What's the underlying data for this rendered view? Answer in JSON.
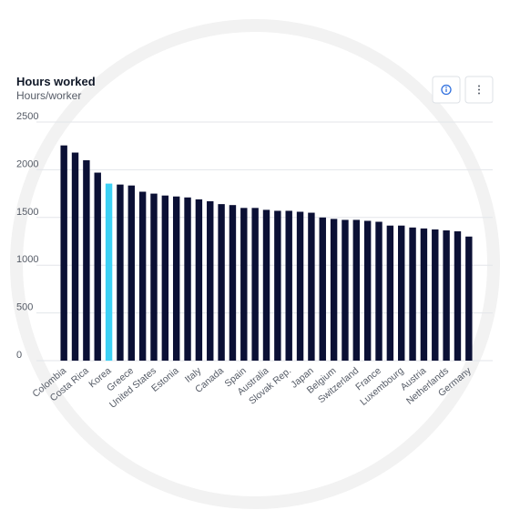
{
  "chart_data": {
    "type": "bar",
    "title": "Hours worked",
    "subtitle": "Hours/worker",
    "categories": [
      "Colombia",
      null,
      "Costa Rica",
      null,
      "Korea",
      null,
      "Greece",
      null,
      "United States",
      null,
      "Estonia",
      null,
      "Italy",
      null,
      "Canada",
      null,
      "Spain",
      null,
      "Australia",
      null,
      "Slovak Rep.",
      null,
      "Japan",
      null,
      "Belgium",
      null,
      "Switzerland",
      null,
      "France",
      null,
      "Luxembourg",
      null,
      "Austria",
      null,
      "Netherlands",
      null,
      "Germany"
    ],
    "values": [
      2255,
      2180,
      2100,
      1970,
      1855,
      1845,
      1835,
      1770,
      1750,
      1730,
      1720,
      1710,
      1690,
      1670,
      1640,
      1630,
      1600,
      1600,
      1580,
      1570,
      1570,
      1560,
      1550,
      1500,
      1485,
      1475,
      1475,
      1465,
      1455,
      1415,
      1415,
      1395,
      1385,
      1375,
      1365,
      1355,
      1300
    ],
    "colors": [
      "#0b1035",
      "#0b1035",
      "#0b1035",
      "#0b1035",
      "#3dd1f5",
      "#0b1035",
      "#0b1035",
      "#0b1035",
      "#0b1035",
      "#0b1035",
      "#0b1035",
      "#0b1035",
      "#0b1035",
      "#0b1035",
      "#0b1035",
      "#0b1035",
      "#0b1035",
      "#0b1035",
      "#0b1035",
      "#0b1035",
      "#0b1035",
      "#0b1035",
      "#0b1035",
      "#0b1035",
      "#0b1035",
      "#0b1035",
      "#0b1035",
      "#0b1035",
      "#0b1035",
      "#0b1035",
      "#0b1035",
      "#0b1035",
      "#0b1035",
      "#0b1035",
      "#0b1035",
      "#0b1035",
      "#0b1035"
    ],
    "ylim": [
      0,
      2500
    ],
    "yticks": [
      0,
      500,
      1000,
      1500,
      2000,
      2500
    ],
    "grid": true
  }
}
